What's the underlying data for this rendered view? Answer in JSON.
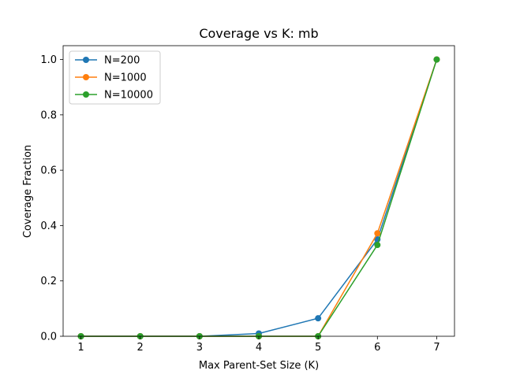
{
  "chart_data": {
    "type": "line",
    "title": "Coverage vs K: mb",
    "xlabel": "Max Parent-Set Size (K)",
    "ylabel": "Coverage Fraction",
    "x": [
      1,
      2,
      3,
      4,
      5,
      6,
      7
    ],
    "xlim": [
      0.7,
      7.3
    ],
    "ylim": [
      0,
      1.05
    ],
    "xticks": [
      "1",
      "2",
      "3",
      "4",
      "5",
      "6",
      "7"
    ],
    "yticks": [
      "0.0",
      "0.2",
      "0.4",
      "0.6",
      "0.8",
      "1.0"
    ],
    "legend_position": "top-left",
    "grid": false,
    "series": [
      {
        "name": "N=200",
        "color": "#1f77b4",
        "values": [
          0,
          0,
          0,
          0.01,
          0.065,
          0.35,
          1.0
        ]
      },
      {
        "name": "N=1000",
        "color": "#ff7f0e",
        "values": [
          0,
          0,
          0,
          0,
          0,
          0.372,
          1.0
        ]
      },
      {
        "name": "N=10000",
        "color": "#2ca02c",
        "values": [
          0,
          0,
          0,
          0,
          0,
          0.33,
          1.0
        ]
      }
    ]
  }
}
